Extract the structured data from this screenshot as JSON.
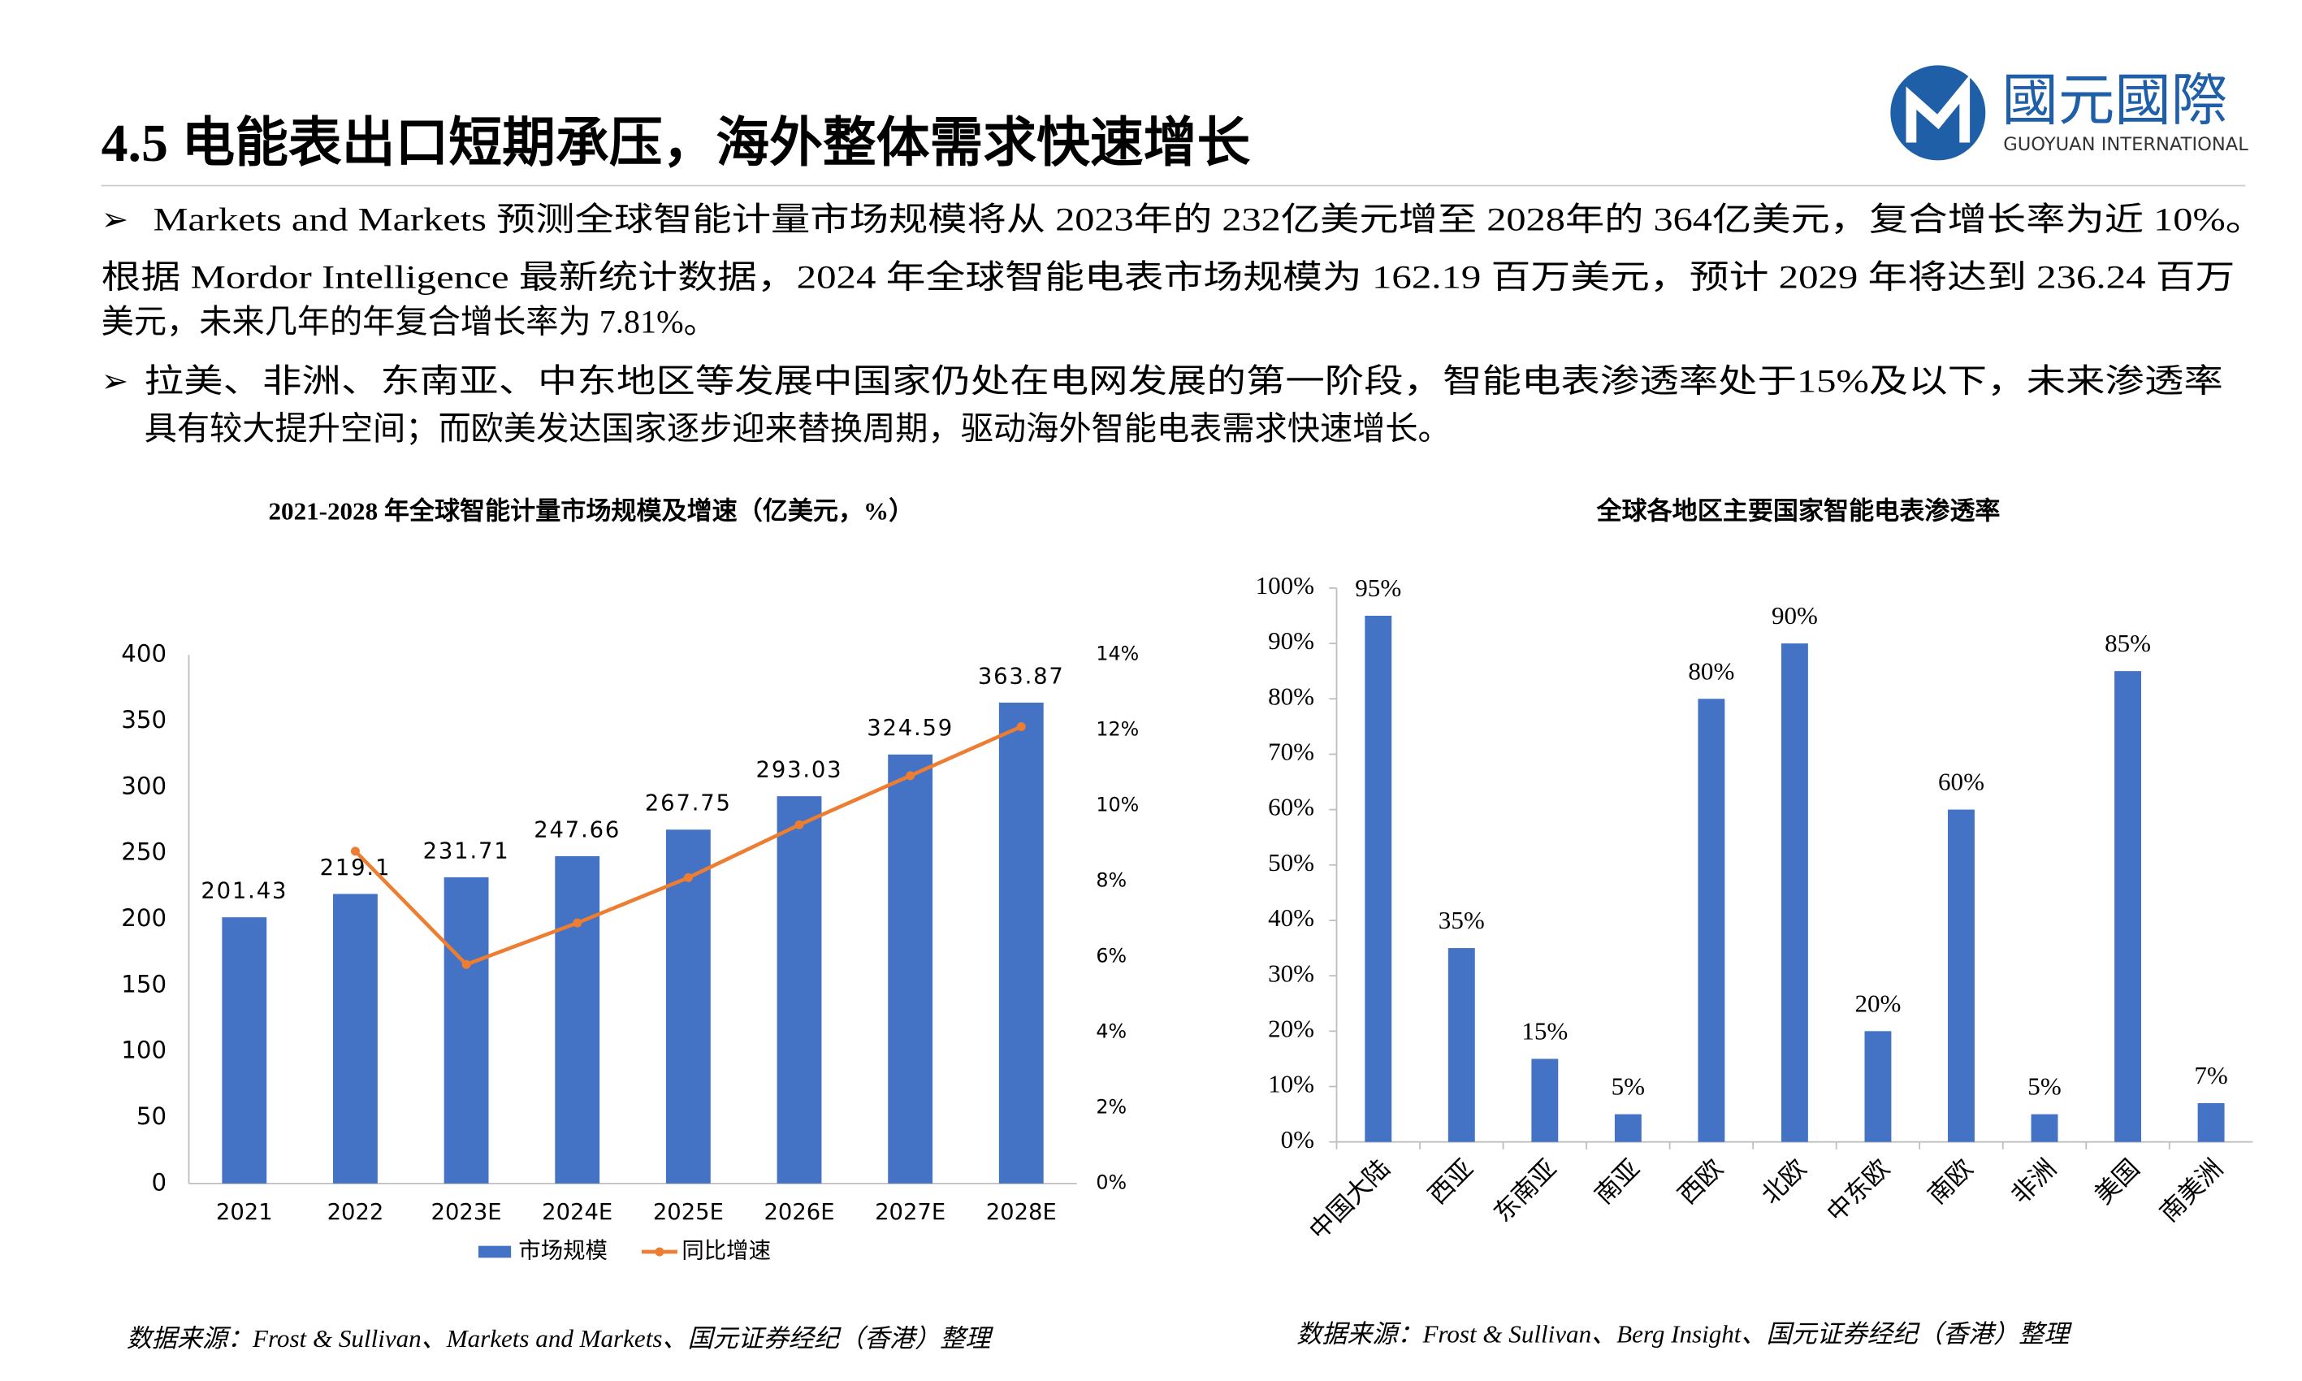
{
  "header": {
    "title": "4.5 电能表出口短期承压，海外整体需求快速增长",
    "logo_cn": "國元國際",
    "logo_en": "GUOYUAN INTERNATIONAL"
  },
  "bullets": [
    {
      "marker": "➢",
      "lines": [
        "Markets and Markets 预测全球智能计量市场规模将从 2023年的 232亿美元增至 2028年的 364亿美元，复合增长率为近 10%。"
      ]
    },
    {
      "lines": [
        "根据 Mordor Intelligence 最新统计数据，2024 年全球智能电表市场规模为 162.19 百万美元，预计 2029 年将达到 236.24 百万",
        "美元，未来几年的年复合增长率为 7.81%。"
      ]
    },
    {
      "marker": "➢",
      "lines": [
        "拉美、非洲、东南亚、中东地区等发展中国家仍处在电网发展的第一阶段，智能电表渗透率处于15%及以下，未来渗透率",
        "具有较大提升空间；而欧美发达国家逐步迎来替换周期，驱动海外智能电表需求快速增长。"
      ]
    }
  ],
  "chart_data": [
    {
      "type": "bar",
      "title": "2021-2028 年全球智能计量市场规模及增速（亿美元，%）",
      "categories": [
        "2021",
        "2022",
        "2023E",
        "2024E",
        "2025E",
        "2026E",
        "2027E",
        "2028E"
      ],
      "series": [
        {
          "name": "市场规模",
          "type": "bar",
          "color": "#4472c4",
          "values": [
            201.43,
            219.1,
            231.71,
            247.66,
            267.75,
            293.03,
            324.59,
            363.87
          ]
        },
        {
          "name": "同比增速",
          "type": "line",
          "axis": "y2",
          "color": "#ed7d31",
          "values": [
            null,
            8.8,
            5.8,
            6.9,
            8.1,
            9.5,
            10.8,
            12.1
          ]
        }
      ],
      "ylim": [
        0,
        400
      ],
      "yticks": [
        0,
        50,
        100,
        150,
        200,
        250,
        300,
        350,
        400
      ],
      "y2lim": [
        0,
        14
      ],
      "y2ticks": [
        {
          "value": 0,
          "label": "0%"
        },
        {
          "value": 2,
          "label": "2%"
        },
        {
          "value": 4,
          "label": "4%"
        },
        {
          "value": 6,
          "label": "6%"
        },
        {
          "value": 8,
          "label": "8%"
        },
        {
          "value": 10,
          "label": "10%"
        },
        {
          "value": 12,
          "label": "12%"
        },
        {
          "value": 14,
          "label": "14%"
        }
      ],
      "legend": "bottom",
      "source": "数据来源：Frost & Sullivan、Markets and Markets、国元证券经纪（香港）整理"
    },
    {
      "type": "bar",
      "title": "全球各地区主要国家智能电表渗透率",
      "categories": [
        "中国大陆",
        "西亚",
        "东南亚",
        "南亚",
        "西欧",
        "北欧",
        "中东欧",
        "南欧",
        "非洲",
        "美国",
        "南美洲"
      ],
      "series": [
        {
          "type": "bar",
          "color": "#4472c4",
          "values": [
            95,
            35,
            15,
            5,
            80,
            90,
            20,
            60,
            5,
            85,
            7
          ],
          "value_labels": [
            "95%",
            "35%",
            "15%",
            "5%",
            "80%",
            "90%",
            "20%",
            "60%",
            "5%",
            "85%",
            "7%"
          ]
        }
      ],
      "ylim": [
        0,
        100
      ],
      "yticks": [
        {
          "value": 0,
          "label": "0%"
        },
        {
          "value": 10,
          "label": "10%"
        },
        {
          "value": 20,
          "label": "20%"
        },
        {
          "value": 30,
          "label": "30%"
        },
        {
          "value": 40,
          "label": "40%"
        },
        {
          "value": 50,
          "label": "50%"
        },
        {
          "value": 60,
          "label": "60%"
        },
        {
          "value": 70,
          "label": "70%"
        },
        {
          "value": 80,
          "label": "80%"
        },
        {
          "value": 90,
          "label": "90%"
        },
        {
          "value": 100,
          "label": "100%"
        }
      ],
      "source": "数据来源：Frost & Sullivan、Berg Insight、国元证券经纪（香港）整理"
    }
  ]
}
